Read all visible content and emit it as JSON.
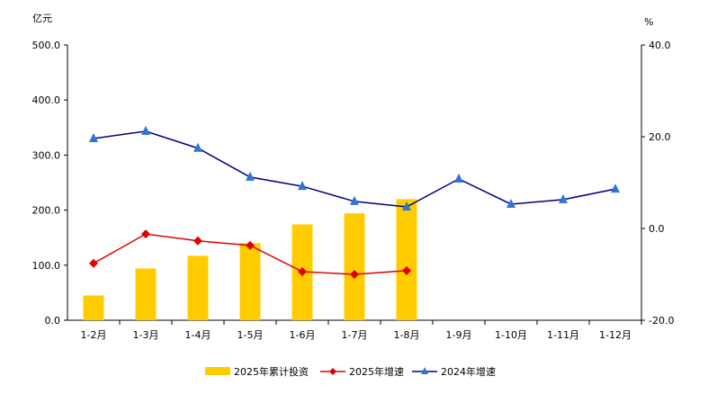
{
  "chart_data": {
    "type": "bar+line",
    "left_unit": "亿元",
    "right_unit": "%",
    "categories": [
      "1-2月",
      "1-3月",
      "1-4月",
      "1-5月",
      "1-6月",
      "1-7月",
      "1-8月",
      "1-9月",
      "1-10月",
      "1-11月",
      "1-12月"
    ],
    "left_axis": {
      "range": [
        0,
        500
      ],
      "ticks": [
        "0.0",
        "100.0",
        "200.0",
        "300.0",
        "400.0",
        "500.0"
      ]
    },
    "right_axis": {
      "range": [
        -20,
        40
      ],
      "ticks": [
        "-20.0",
        "0.0",
        "20.0",
        "40.0"
      ]
    },
    "series": [
      {
        "name": "2025年累计投资",
        "type": "bar",
        "axis": "left",
        "color": "#FFCC00",
        "values": [
          45,
          94,
          117,
          140,
          174,
          194,
          220,
          null,
          null,
          null,
          null
        ]
      },
      {
        "name": "2025年增速",
        "type": "line",
        "axis": "right",
        "color": "#E00000",
        "marker": "diamond",
        "values": [
          -7.6,
          -1.2,
          -2.7,
          -3.7,
          -9.4,
          -10.0,
          -9.2,
          null,
          null,
          null,
          null
        ]
      },
      {
        "name": "2024年增速",
        "type": "line",
        "axis": "right",
        "color": "#000080",
        "marker_color": "#2E75D6",
        "marker": "triangle",
        "values": [
          19.6,
          21.2,
          17.5,
          11.2,
          9.2,
          5.9,
          4.7,
          10.8,
          5.3,
          6.3,
          8.6
        ]
      }
    ],
    "legend": "bottom",
    "grid": false
  }
}
